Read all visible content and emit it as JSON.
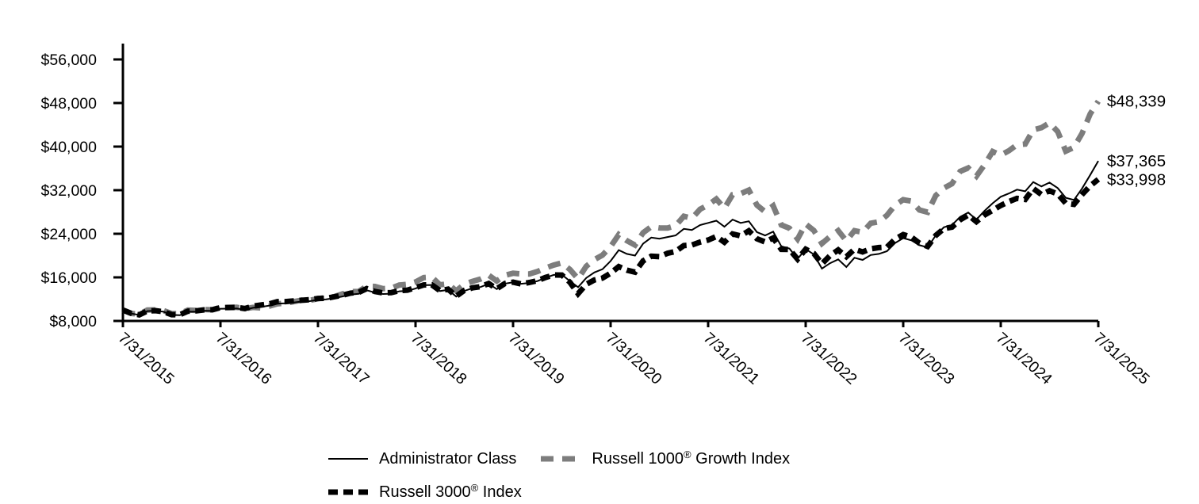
{
  "chart_data": {
    "type": "line",
    "title": "",
    "x_axis": {
      "frequency": "monthly",
      "range": [
        "7/31/2015",
        "7/31/2025"
      ],
      "tick_labels": [
        "7/31/2015",
        "7/31/2016",
        "7/31/2017",
        "7/31/2018",
        "7/31/2019",
        "7/31/2020",
        "7/31/2021",
        "7/31/2022",
        "7/31/2023",
        "7/31/2024",
        "7/31/2025"
      ],
      "tick_label_rotation_deg": 42
    },
    "y_axis": {
      "tick_values": [
        8000,
        16000,
        24000,
        32000,
        40000,
        48000,
        56000
      ],
      "tick_labels": [
        "$8,000",
        "$16,000",
        "$24,000",
        "$32,000",
        "$40,000",
        "$48,000",
        "$56,000"
      ],
      "range": [
        8000,
        57600
      ],
      "grid": false
    },
    "legend_position": "bottom",
    "series": [
      {
        "name": "Administrator Class",
        "color": "#000000",
        "line_style": "solid",
        "line_width": 2,
        "dash": "",
        "end_label": "$37,365",
        "end_value": 37365,
        "values": [
          10000,
          9370,
          9090,
          9810,
          9880,
          9690,
          9100,
          9050,
          9680,
          9700,
          9870,
          9840,
          10240,
          10260,
          10280,
          10040,
          10420,
          10580,
          10810,
          11180,
          11230,
          11390,
          11570,
          11640,
          11890,
          11960,
          12190,
          12490,
          12850,
          12970,
          13630,
          13210,
          12950,
          13000,
          13440,
          13530,
          13950,
          14560,
          14600,
          13490,
          13720,
          12480,
          13520,
          14010,
          14230,
          14810,
          13850,
          14850,
          15090,
          14820,
          14980,
          15320,
          15940,
          16450,
          16500,
          15300,
          14200,
          15900,
          16900,
          17500,
          19000,
          21000,
          20300,
          20000,
          22200,
          23300,
          23100,
          23400,
          23700,
          24900,
          24700,
          25600,
          26000,
          26400,
          25300,
          26600,
          26000,
          26300,
          24300,
          23700,
          24400,
          21700,
          21300,
          19400,
          21200,
          20200,
          17600,
          18600,
          19300,
          17900,
          19600,
          19200,
          20100,
          20300,
          20800,
          22300,
          23200,
          22800,
          21900,
          21500,
          23700,
          25200,
          25600,
          27100,
          27900,
          26600,
          28200,
          29600,
          30800,
          31400,
          32100,
          31800,
          33500,
          32700,
          33400,
          32400,
          30600,
          30200,
          32300,
          34800,
          37365
        ]
      },
      {
        "name": "Russell 1000® Growth Index",
        "color": "#7d7d7d",
        "line_style": "dashed",
        "line_width": 7,
        "dash": "16 11",
        "end_label": "$48,339",
        "end_value": 48339,
        "values": [
          10000,
          9380,
          9232,
          10010,
          10040,
          9886,
          9351,
          9344,
          9990,
          9920,
          10090,
          10043,
          10512,
          10461,
          10499,
          10261,
          10488,
          10387,
          10710,
          11140,
          11270,
          11530,
          11830,
          11780,
          12090,
          12310,
          12470,
          12960,
          13360,
          13420,
          14370,
          14330,
          13940,
          13990,
          14590,
          14720,
          15150,
          15960,
          16050,
          14640,
          14790,
          13530,
          14740,
          15260,
          15690,
          16390,
          15330,
          16380,
          16750,
          16620,
          16620,
          17080,
          17720,
          18250,
          18660,
          17430,
          15720,
          18030,
          19240,
          20080,
          21640,
          23850,
          22740,
          21920,
          24190,
          25310,
          25070,
          25060,
          25490,
          27210,
          26830,
          28500,
          29290,
          30380,
          28680,
          31170,
          31360,
          32020,
          29270,
          28040,
          29130,
          25610,
          25020,
          23040,
          25810,
          24600,
          22210,
          23500,
          24580,
          22690,
          24570,
          24280,
          25930,
          26190,
          27390,
          29260,
          30250,
          29980,
          28360,
          27960,
          31010,
          32380,
          33190,
          35450,
          36090,
          34570,
          36650,
          39100,
          38440,
          39240,
          40340,
          40460,
          43090,
          43480,
          44350,
          42750,
          39160,
          39870,
          42420,
          46000,
          48339
        ]
      },
      {
        "name": "Russell 3000® Index",
        "color": "#000000",
        "line_style": "dashed",
        "line_width": 7,
        "dash": "12 7",
        "end_label": "$33,998",
        "end_value": 33998,
        "values": [
          10000,
          9396,
          9119,
          9840,
          9894,
          9692,
          9149,
          9146,
          9790,
          9851,
          10030,
          10051,
          10449,
          10475,
          10491,
          10263,
          10718,
          10926,
          11132,
          11545,
          11553,
          11675,
          11794,
          11901,
          12124,
          12147,
          12443,
          12715,
          13101,
          13232,
          13930,
          13417,
          13147,
          13196,
          13570,
          13657,
          14113,
          14609,
          14634,
          13555,
          13826,
          12531,
          13610,
          14087,
          14292,
          14864,
          13905,
          14883,
          15106,
          14798,
          15058,
          15384,
          15980,
          16437,
          16419,
          15085,
          13009,
          14724,
          15516,
          15872,
          16770,
          17983,
          17330,
          16959,
          19028,
          19884,
          19794,
          20420,
          20753,
          21830,
          21928,
          22473,
          22855,
          23499,
          22444,
          23970,
          23610,
          24531,
          23084,
          22507,
          23227,
          21137,
          21116,
          19342,
          21160,
          20377,
          18482,
          19997,
          21037,
          19796,
          21162,
          20675,
          21233,
          21467,
          21553,
          23019,
          23848,
          23395,
          22272,
          21671,
          23686,
          24941,
          25215,
          26577,
          27427,
          26220,
          27452,
          28303,
          29200,
          29900,
          30500,
          30300,
          32300,
          31200,
          31900,
          31300,
          29600,
          29400,
          31200,
          32800,
          33998
        ]
      }
    ],
    "legend": {
      "items": [
        {
          "pre": "Administrator Class",
          "reg": "",
          "post": ""
        },
        {
          "pre": "Russell 1000",
          "reg": "®",
          "post": " Growth Index"
        },
        {
          "pre": "Russell 3000",
          "reg": "®",
          "post": " Index"
        }
      ]
    }
  }
}
